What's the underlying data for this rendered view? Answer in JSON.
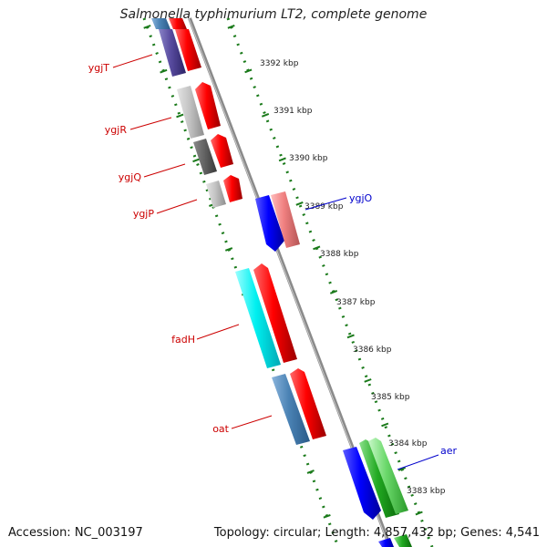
{
  "title": "Salmonella typhimurium LT2, complete genome",
  "footer": {
    "accession": "Accession: NC_003197",
    "topology": "Topology: circular; Length: 4,857,432 bp; Genes: 4,541"
  },
  "ticks": [
    {
      "label": "3392 kbp"
    },
    {
      "label": "3391 kbp"
    },
    {
      "label": "3390 kbp"
    },
    {
      "label": "3389 kbp"
    },
    {
      "label": "3388 kbp"
    },
    {
      "label": "3387 kbp"
    },
    {
      "label": "3386 kbp"
    },
    {
      "label": "3385 kbp"
    },
    {
      "label": "3384 kbp"
    },
    {
      "label": "3383 kbp"
    }
  ],
  "gene_labels": [
    {
      "name": "ygjT",
      "color": "#cc0000"
    },
    {
      "name": "ygjR",
      "color": "#cc0000"
    },
    {
      "name": "ygjQ",
      "color": "#cc0000"
    },
    {
      "name": "ygjP",
      "color": "#cc0000"
    },
    {
      "name": "fadH",
      "color": "#cc0000"
    },
    {
      "name": "oat",
      "color": "#cc0000"
    },
    {
      "name": "ygjO",
      "color": "#0000cc"
    },
    {
      "name": "aer",
      "color": "#0000cc"
    }
  ],
  "colors": {
    "backbone": "#8a8a8a",
    "dotted_track": "#1a7a1a",
    "forward_cds": "#ff0000",
    "reverse_blue": "#0000ff",
    "light_red": "#f08080"
  }
}
